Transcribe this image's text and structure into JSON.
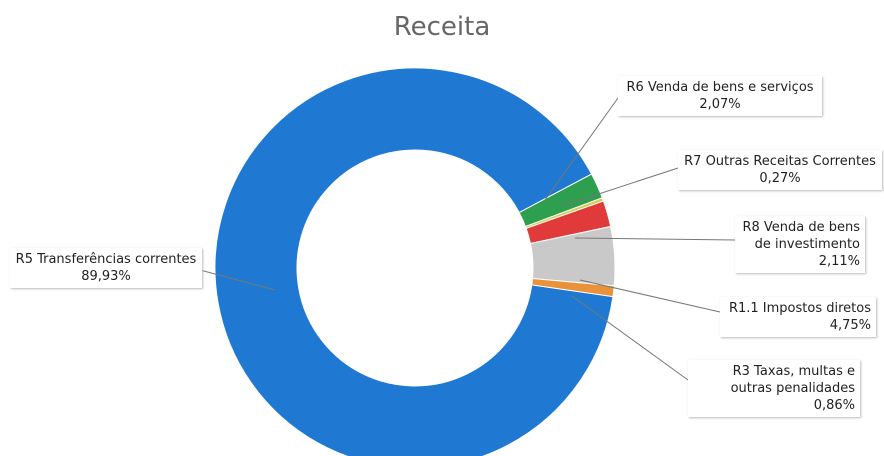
{
  "chart_data": {
    "type": "donut",
    "title": "Receita",
    "categories": [
      "R5 Transferências correntes",
      "R6 Venda de bens e serviços",
      "R7 Outras Receitas Correntes",
      "R8 Venda de bens de investimento",
      "R1.1 Impostos diretos",
      "R3 Taxas, multas e outras penalidades"
    ],
    "values": [
      89.93,
      2.07,
      0.27,
      2.11,
      4.75,
      0.86
    ],
    "value_labels": [
      "89,93%",
      "2,07%",
      "0,27%",
      "2,11%",
      "4,75%",
      "0,86%"
    ],
    "colors": [
      "#1f78d1",
      "#2e9e4f",
      "#d8cc4a",
      "#e03a3a",
      "#c9c9c9",
      "#e8923a"
    ]
  }
}
